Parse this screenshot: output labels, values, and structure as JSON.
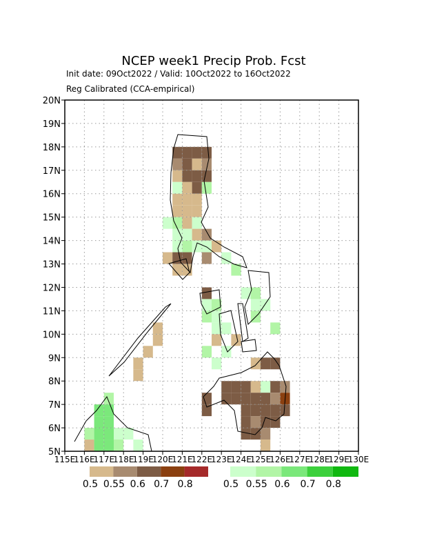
{
  "chart_data": {
    "type": "gridmap",
    "title": "NCEP week1 Precip Prob. Fcst",
    "subtitle": "Init date: 09Oct2022 / Valid: 10Oct2022 to 16Oct2022",
    "method": "Reg Calibrated (CCA-empirical)",
    "xlim": [
      115,
      130
    ],
    "ylim": [
      5,
      20
    ],
    "xticks": [
      {
        "value": 115,
        "label": "115E"
      },
      {
        "value": 116,
        "label": "116E"
      },
      {
        "value": 117,
        "label": "117E"
      },
      {
        "value": 118,
        "label": "118E"
      },
      {
        "value": 119,
        "label": "119E"
      },
      {
        "value": 120,
        "label": "120E"
      },
      {
        "value": 121,
        "label": "121E"
      },
      {
        "value": 122,
        "label": "122E"
      },
      {
        "value": 123,
        "label": "123E"
      },
      {
        "value": 124,
        "label": "124E"
      },
      {
        "value": 125,
        "label": "125E"
      },
      {
        "value": 126,
        "label": "126E"
      },
      {
        "value": 127,
        "label": "127E"
      },
      {
        "value": 128,
        "label": "128E"
      },
      {
        "value": 129,
        "label": "129E"
      },
      {
        "value": 130,
        "label": "130E"
      }
    ],
    "yticks": [
      {
        "value": 5,
        "label": "5N"
      },
      {
        "value": 6,
        "label": "6N"
      },
      {
        "value": 7,
        "label": "7N"
      },
      {
        "value": 8,
        "label": "8N"
      },
      {
        "value": 9,
        "label": "9N"
      },
      {
        "value": 10,
        "label": "10N"
      },
      {
        "value": 11,
        "label": "11N"
      },
      {
        "value": 12,
        "label": "12N"
      },
      {
        "value": 13,
        "label": "13N"
      },
      {
        "value": 14,
        "label": "14N"
      },
      {
        "value": 15,
        "label": "15N"
      },
      {
        "value": 16,
        "label": "16N"
      },
      {
        "value": 17,
        "label": "17N"
      },
      {
        "value": 18,
        "label": "18N"
      },
      {
        "value": 19,
        "label": "19N"
      },
      {
        "value": 20,
        "label": "20N"
      }
    ],
    "grid": true,
    "cell_size": 0.5,
    "levels": [
      0.5,
      0.55,
      0.6,
      0.7,
      0.8
    ],
    "dry_colors": [
      "#d6b98c",
      "#a88b70",
      "#7d5c45",
      "#8b4010",
      "#a52a2a"
    ],
    "wet_colors": [
      "#ccffcc",
      "#b2f5a6",
      "#7be87b",
      "#3cd03c",
      "#10b810"
    ],
    "cells": [
      [
        120.5,
        17.5,
        0.6,
        "dry"
      ],
      [
        121,
        17.5,
        0.6,
        "dry"
      ],
      [
        121.5,
        17.5,
        0.6,
        "dry"
      ],
      [
        122,
        17.5,
        0.6,
        "dry"
      ],
      [
        120.5,
        17,
        0.55,
        "dry"
      ],
      [
        121,
        17,
        0.6,
        "dry"
      ],
      [
        121.5,
        17,
        0.5,
        "dry"
      ],
      [
        122,
        17,
        0.55,
        "dry"
      ],
      [
        120.5,
        16.5,
        0.5,
        "dry"
      ],
      [
        121,
        16.5,
        0.6,
        "dry"
      ],
      [
        121.5,
        16.5,
        0.6,
        "dry"
      ],
      [
        122,
        16.5,
        0.6,
        "dry"
      ],
      [
        120.5,
        16,
        0.5,
        "wet"
      ],
      [
        121,
        16,
        0.5,
        "dry"
      ],
      [
        121.5,
        16,
        0.6,
        "dry"
      ],
      [
        122,
        16,
        0.55,
        "wet"
      ],
      [
        120.5,
        15.5,
        0.5,
        "dry"
      ],
      [
        121,
        15.5,
        0.5,
        "dry"
      ],
      [
        121.5,
        15.5,
        0.5,
        "dry"
      ],
      [
        120.5,
        15,
        0.5,
        "dry"
      ],
      [
        121,
        15,
        0.5,
        "dry"
      ],
      [
        121.5,
        15,
        0.5,
        "dry"
      ],
      [
        120,
        14.5,
        0.5,
        "wet"
      ],
      [
        120.5,
        14.5,
        0.55,
        "wet"
      ],
      [
        121,
        14.5,
        0.5,
        "dry"
      ],
      [
        121.5,
        14.5,
        0.5,
        "wet"
      ],
      [
        120.5,
        14,
        0.5,
        "wet"
      ],
      [
        121,
        14,
        0.5,
        "wet"
      ],
      [
        121.5,
        14,
        0.5,
        "dry"
      ],
      [
        122,
        14,
        0.55,
        "dry"
      ],
      [
        120.5,
        13.5,
        0.5,
        "wet"
      ],
      [
        121,
        13.5,
        0.55,
        "wet"
      ],
      [
        121.5,
        13.5,
        0.5,
        "wet"
      ],
      [
        122,
        13.5,
        0.5,
        "wet"
      ],
      [
        122.5,
        13.5,
        0.5,
        "dry"
      ],
      [
        120,
        13,
        0.5,
        "dry"
      ],
      [
        120.5,
        13,
        0.6,
        "dry"
      ],
      [
        121,
        13,
        0.6,
        "dry"
      ],
      [
        122,
        13,
        0.55,
        "dry"
      ],
      [
        123,
        13,
        0.5,
        "wet"
      ],
      [
        120.5,
        12.5,
        0.5,
        "dry"
      ],
      [
        121,
        12.5,
        0.5,
        "dry"
      ],
      [
        123.5,
        12.5,
        0.55,
        "wet"
      ],
      [
        122,
        11.5,
        0.6,
        "dry"
      ],
      [
        124,
        11.5,
        0.5,
        "wet"
      ],
      [
        124.5,
        11.5,
        0.55,
        "wet"
      ],
      [
        122,
        11,
        0.5,
        "wet"
      ],
      [
        122.5,
        11,
        0.55,
        "wet"
      ],
      [
        124.5,
        11,
        0.5,
        "wet"
      ],
      [
        125,
        11,
        0.5,
        "wet"
      ],
      [
        122,
        10.5,
        0.55,
        "wet"
      ],
      [
        122.5,
        10.5,
        0.5,
        "wet"
      ],
      [
        124.5,
        10.5,
        0.55,
        "wet"
      ],
      [
        122.5,
        10,
        0.5,
        "wet"
      ],
      [
        123,
        10,
        0.5,
        "wet"
      ],
      [
        125.5,
        10,
        0.55,
        "wet"
      ],
      [
        122.5,
        9.5,
        0.5,
        "dry"
      ],
      [
        123.5,
        9.5,
        0.5,
        "dry"
      ],
      [
        122,
        9,
        0.55,
        "wet"
      ],
      [
        123,
        9,
        0.5,
        "wet"
      ],
      [
        122.5,
        8.5,
        0.5,
        "wet"
      ],
      [
        124.5,
        8.5,
        0.5,
        "dry"
      ],
      [
        125,
        8.5,
        0.6,
        "dry"
      ],
      [
        125.5,
        8.5,
        0.6,
        "dry"
      ],
      [
        123,
        7.5,
        0.6,
        "dry"
      ],
      [
        123.5,
        7.5,
        0.6,
        "dry"
      ],
      [
        124,
        7.5,
        0.6,
        "dry"
      ],
      [
        124.5,
        7.5,
        0.5,
        "dry"
      ],
      [
        125,
        7.5,
        0.5,
        "wet"
      ],
      [
        125.5,
        7.5,
        0.6,
        "dry"
      ],
      [
        126,
        7.5,
        0.55,
        "dry"
      ],
      [
        122,
        7,
        0.6,
        "dry"
      ],
      [
        123,
        7,
        0.6,
        "dry"
      ],
      [
        123.5,
        7,
        0.6,
        "dry"
      ],
      [
        124,
        7,
        0.6,
        "dry"
      ],
      [
        124.5,
        7,
        0.6,
        "dry"
      ],
      [
        125,
        7,
        0.6,
        "dry"
      ],
      [
        125.5,
        7,
        0.55,
        "dry"
      ],
      [
        126,
        7,
        0.7,
        "dry"
      ],
      [
        122,
        6.5,
        0.6,
        "dry"
      ],
      [
        124,
        6.5,
        0.6,
        "dry"
      ],
      [
        124.5,
        6.5,
        0.6,
        "dry"
      ],
      [
        125,
        6.5,
        0.6,
        "dry"
      ],
      [
        125.5,
        6.5,
        0.6,
        "dry"
      ],
      [
        126,
        6.5,
        0.6,
        "dry"
      ],
      [
        124,
        6,
        0.6,
        "dry"
      ],
      [
        124.5,
        6,
        0.55,
        "dry"
      ],
      [
        125,
        6,
        0.6,
        "dry"
      ],
      [
        125.5,
        6,
        0.6,
        "dry"
      ],
      [
        124,
        5.5,
        0.6,
        "dry"
      ],
      [
        124.5,
        5.5,
        0.6,
        "dry"
      ],
      [
        125,
        5.5,
        0.55,
        "dry"
      ],
      [
        125,
        5,
        0.5,
        "dry"
      ],
      [
        117,
        7,
        0.55,
        "wet"
      ],
      [
        116.5,
        6.5,
        0.6,
        "wet"
      ],
      [
        117,
        6.5,
        0.6,
        "wet"
      ],
      [
        116.5,
        6,
        0.6,
        "wet"
      ],
      [
        117,
        6,
        0.6,
        "wet"
      ],
      [
        116,
        5.5,
        0.55,
        "wet"
      ],
      [
        116.5,
        5.5,
        0.6,
        "wet"
      ],
      [
        117,
        5.5,
        0.6,
        "wet"
      ],
      [
        117.5,
        5.5,
        0.5,
        "wet"
      ],
      [
        118,
        5.5,
        0.5,
        "wet"
      ],
      [
        116,
        5,
        0.5,
        "dry"
      ],
      [
        116.5,
        5,
        0.6,
        "wet"
      ],
      [
        117,
        5,
        0.6,
        "wet"
      ],
      [
        117.5,
        5,
        0.55,
        "wet"
      ],
      [
        118.5,
        5,
        0.5,
        "wet"
      ],
      [
        118.5,
        8.5,
        0.5,
        "dry"
      ],
      [
        118.5,
        8,
        0.5,
        "dry"
      ],
      [
        119,
        9,
        0.5,
        "dry"
      ],
      [
        119.5,
        9.5,
        0.5,
        "dry"
      ],
      [
        119.5,
        10,
        0.5,
        "dry"
      ]
    ]
  }
}
